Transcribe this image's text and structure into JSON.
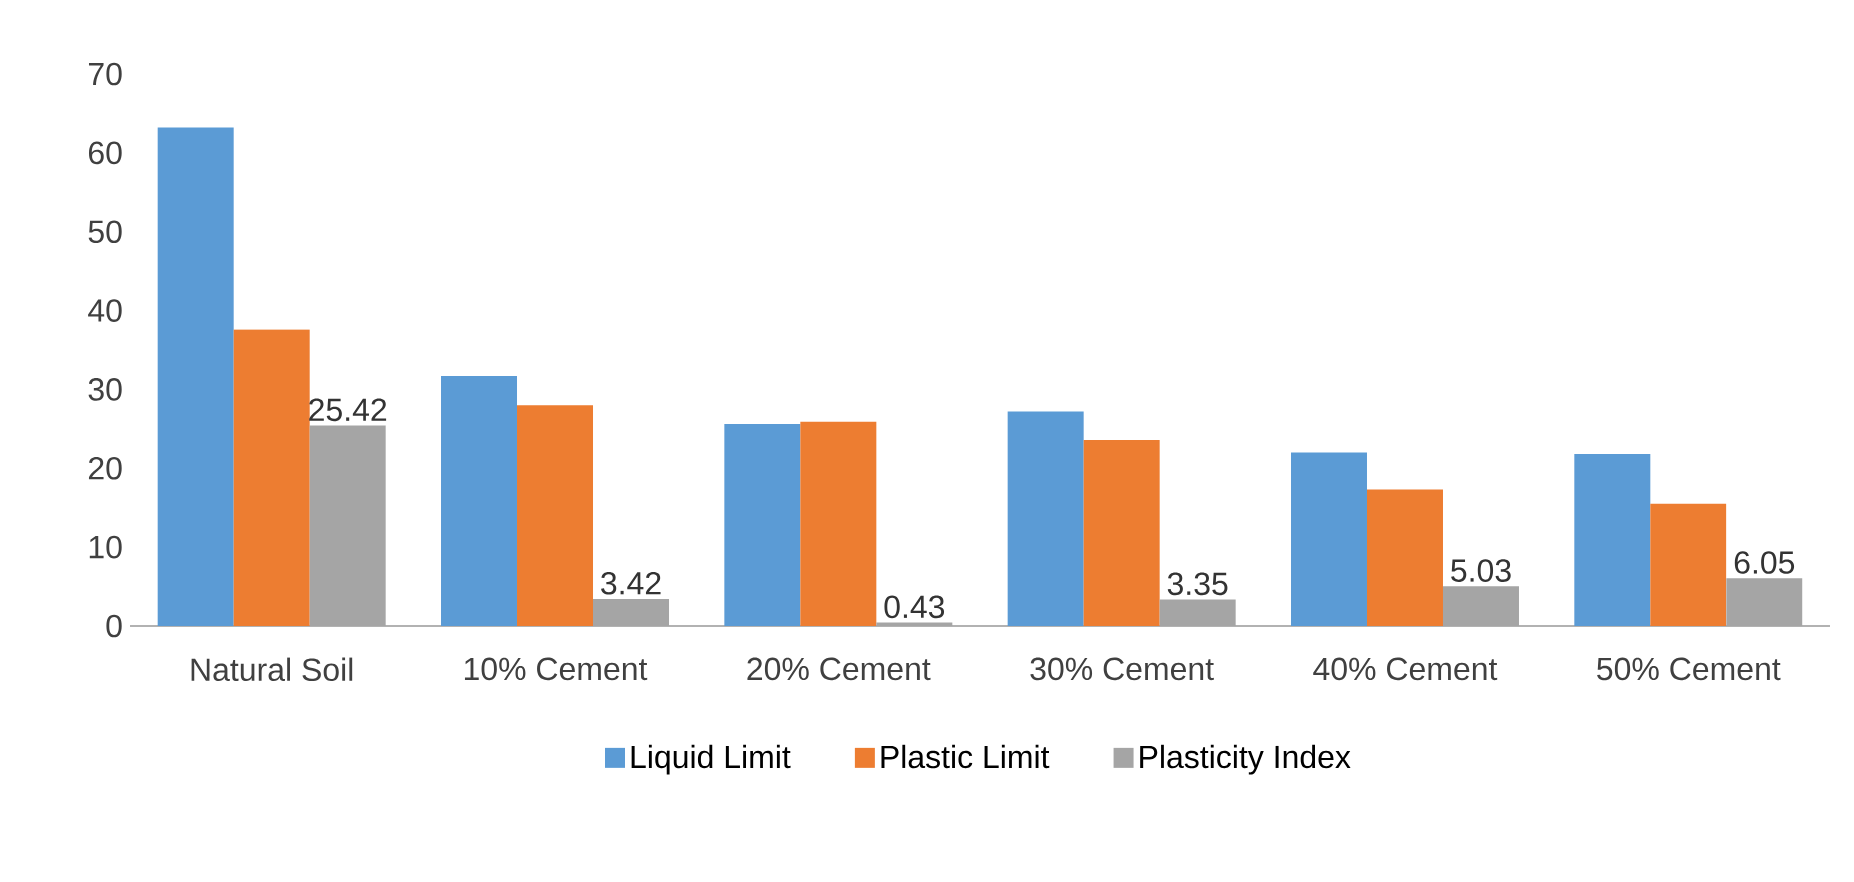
{
  "chart_data": {
    "type": "bar",
    "categories": [
      "Natural Soil",
      "10% Cement",
      "20% Cement",
      "30% Cement",
      "40% Cement",
      "50% Cement"
    ],
    "series": [
      {
        "name": "Liquid Limit",
        "color": "#5b9bd5",
        "values": [
          63.2,
          31.7,
          25.6,
          27.2,
          22.0,
          21.8
        ]
      },
      {
        "name": "Plastic Limit",
        "color": "#ed7d31",
        "values": [
          37.6,
          28.0,
          25.9,
          23.6,
          17.3,
          15.5
        ]
      },
      {
        "name": "Plasticity Index",
        "color": "#a5a5a5",
        "values": [
          25.42,
          3.42,
          0.43,
          3.35,
          5.03,
          6.05
        ],
        "value_labels": [
          "25.42",
          "3.42",
          "0.43",
          "3.35",
          "5.03",
          "6.05"
        ]
      }
    ],
    "ylim": [
      0,
      70
    ],
    "yticks": [
      0,
      10,
      20,
      30,
      40,
      50,
      60,
      70
    ],
    "legend": "bottom"
  }
}
